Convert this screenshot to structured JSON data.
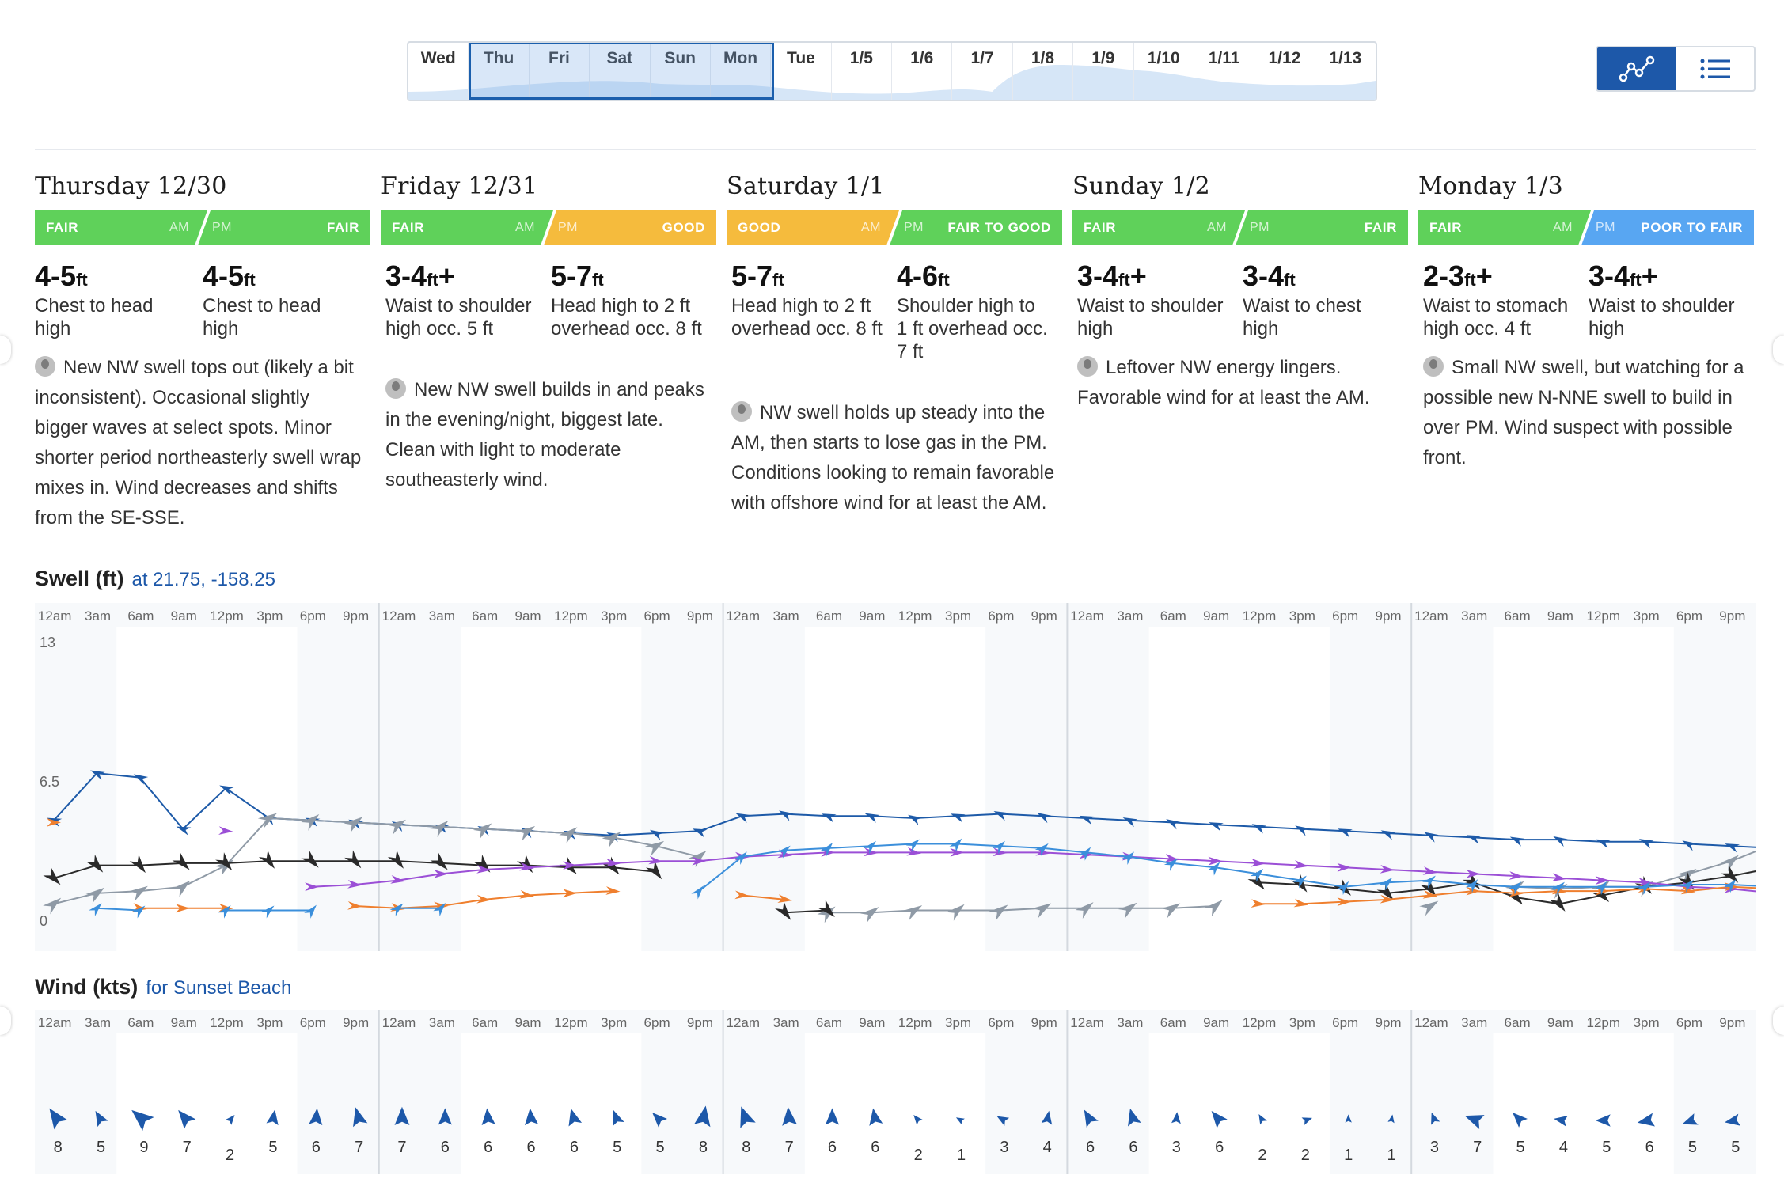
{
  "nav": {
    "days": [
      "Wed",
      "Thu",
      "Fri",
      "Sat",
      "Sun",
      "Mon",
      "Tue",
      "1/5",
      "1/6",
      "1/7",
      "1/8",
      "1/9",
      "1/10",
      "1/11",
      "1/12",
      "1/13"
    ],
    "selected_range": [
      "Thu",
      "Mon"
    ]
  },
  "view_toggle": {
    "active": "graph",
    "graph_icon": "line-graph-icon",
    "list_icon": "list-icon"
  },
  "days": [
    {
      "title": "Thursday 12/30",
      "am": {
        "rating": "FAIR",
        "color": "#5fd15a",
        "tag": "AM"
      },
      "pm": {
        "rating": "FAIR",
        "color": "#5fd15a",
        "tag": "PM"
      },
      "am_size": {
        "range": "4-5",
        "unit": "ft",
        "plus": "",
        "desc": "Chest to head high"
      },
      "pm_size": {
        "range": "4-5",
        "unit": "ft",
        "plus": "",
        "desc": "Chest to head high"
      },
      "note": "New NW swell tops out (likely a bit inconsistent). Occasional slightly bigger waves at select spots. Minor shorter period northeasterly swell wrap mixes in. Wind decreases and shifts from the SE-SSE."
    },
    {
      "title": "Friday 12/31",
      "am": {
        "rating": "FAIR",
        "color": "#5fd15a",
        "tag": "AM"
      },
      "pm": {
        "rating": "GOOD",
        "color": "#f5bb3d",
        "tag": "PM"
      },
      "am_size": {
        "range": "3-4",
        "unit": "ft",
        "plus": "+",
        "desc": "Waist to shoulder high occ. 5 ft"
      },
      "pm_size": {
        "range": "5-7",
        "unit": "ft",
        "plus": "",
        "desc": "Head high to 2 ft overhead occ. 8 ft"
      },
      "note": "New NW swell builds in and peaks in the evening/night, biggest late. Clean with light to moderate southeasterly wind."
    },
    {
      "title": "Saturday 1/1",
      "am": {
        "rating": "GOOD",
        "color": "#f5bb3d",
        "tag": "AM"
      },
      "pm": {
        "rating": "FAIR TO GOOD",
        "color": "#5fd15a",
        "tag": "PM"
      },
      "am_size": {
        "range": "5-7",
        "unit": "ft",
        "plus": "",
        "desc": "Head high to 2 ft overhead occ. 8 ft"
      },
      "pm_size": {
        "range": "4-6",
        "unit": "ft",
        "plus": "",
        "desc": "Shoulder high to 1 ft overhead occ. 7 ft"
      },
      "note": "NW swell holds up steady into the AM, then starts to lose gas in the PM. Conditions looking to remain favorable with offshore wind for at least the AM."
    },
    {
      "title": "Sunday 1/2",
      "am": {
        "rating": "FAIR",
        "color": "#5fd15a",
        "tag": "AM"
      },
      "pm": {
        "rating": "FAIR",
        "color": "#5fd15a",
        "tag": "PM"
      },
      "am_size": {
        "range": "3-4",
        "unit": "ft",
        "plus": "+",
        "desc": "Waist to shoulder high"
      },
      "pm_size": {
        "range": "3-4",
        "unit": "ft",
        "plus": "",
        "desc": "Waist to chest high"
      },
      "note": "Leftover NW energy lingers. Favorable wind for at least the AM."
    },
    {
      "title": "Monday 1/3",
      "am": {
        "rating": "FAIR",
        "color": "#5fd15a",
        "tag": "AM"
      },
      "pm": {
        "rating": "POOR TO FAIR",
        "color": "#58a6f2",
        "tag": "PM"
      },
      "am_size": {
        "range": "2-3",
        "unit": "ft",
        "plus": "+",
        "desc": "Waist to stomach high occ. 4 ft"
      },
      "pm_size": {
        "range": "3-4",
        "unit": "ft",
        "plus": "+",
        "desc": "Waist to shoulder high"
      },
      "note": "Small NW swell, but watching for a possible new N-NNE swell to build in over PM. Wind suspect with possible front."
    }
  ],
  "swell": {
    "title": "Swell (ft)",
    "location": "at 21.75, -158.25",
    "hour_labels": [
      "12am",
      "3am",
      "6am",
      "9am",
      "12pm",
      "3pm",
      "6pm",
      "9pm"
    ],
    "y_ticks": [
      "13",
      "6.5",
      "0"
    ],
    "ylim": [
      0,
      13
    ],
    "series": [
      {
        "color": "#1d5aa8",
        "values": [
          4.7,
          6.9,
          6.7,
          4.3,
          6.2,
          4.8,
          4.7,
          4.6,
          4.5,
          4.4,
          4.3,
          4.2,
          4.1,
          4.0,
          4.1,
          4.2,
          4.9,
          5.0,
          4.9,
          4.9,
          4.8,
          4.9,
          5.0,
          4.9,
          4.8,
          4.7,
          4.6,
          4.5,
          4.4,
          4.3,
          4.2,
          4.1,
          4.0,
          3.9,
          3.8,
          3.8,
          3.7,
          3.7,
          3.6,
          3.5,
          3.4
        ]
      },
      {
        "color": "#8f9aa6",
        "values": [
          0.8,
          1.3,
          1.4,
          1.6,
          2.6,
          4.8,
          4.7,
          4.6,
          4.5,
          4.4,
          4.3,
          4.2,
          4.1,
          3.9,
          3.5,
          3.0,
          null,
          null,
          0.4,
          0.4,
          0.5,
          0.5,
          0.5,
          0.6,
          0.6,
          0.6,
          0.6,
          0.7,
          null,
          null,
          null,
          null,
          0.7,
          null,
          1.6,
          1.5,
          1.6,
          1.6,
          2.2,
          2.8,
          3.6
        ]
      },
      {
        "color": "#2a2a2a",
        "values": [
          2.0,
          2.6,
          2.6,
          2.7,
          2.7,
          2.8,
          2.8,
          2.8,
          2.8,
          2.7,
          2.6,
          2.6,
          2.5,
          2.5,
          2.3,
          null,
          null,
          0.4,
          0.5,
          null,
          null,
          null,
          null,
          null,
          null,
          null,
          null,
          null,
          1.8,
          1.7,
          1.5,
          1.3,
          1.5,
          1.8,
          1.1,
          0.8,
          1.2,
          1.6,
          1.8,
          2.1,
          2.5
        ]
      },
      {
        "color": "#9b4fd6",
        "values": [
          null,
          null,
          null,
          null,
          4.2,
          null,
          1.6,
          1.7,
          1.9,
          2.2,
          2.4,
          2.5,
          2.6,
          2.7,
          2.8,
          2.8,
          3.0,
          3.1,
          3.2,
          3.2,
          3.2,
          3.2,
          3.2,
          3.2,
          3.1,
          3.0,
          2.9,
          2.8,
          2.7,
          2.6,
          2.5,
          2.4,
          2.3,
          2.2,
          2.1,
          2.0,
          1.9,
          1.8,
          1.6,
          1.5,
          1.3
        ]
      },
      {
        "color": "#ef7f2e",
        "values": [
          4.6,
          null,
          0.6,
          0.6,
          0.6,
          null,
          null,
          0.7,
          0.6,
          0.7,
          1.0,
          1.2,
          1.3,
          1.4,
          null,
          null,
          1.2,
          1.0,
          null,
          null,
          null,
          null,
          null,
          null,
          null,
          null,
          null,
          null,
          0.8,
          0.8,
          0.9,
          1.0,
          1.2,
          1.4,
          1.3,
          1.4,
          1.4,
          1.5,
          1.4,
          1.6,
          1.5
        ]
      },
      {
        "color": "#3b8fdb",
        "values": [
          null,
          0.6,
          0.5,
          null,
          0.5,
          0.5,
          0.5,
          null,
          0.6,
          0.6,
          null,
          null,
          null,
          null,
          null,
          1.4,
          3.0,
          3.3,
          3.4,
          3.5,
          3.6,
          3.6,
          3.5,
          3.4,
          3.2,
          3.0,
          2.7,
          2.5,
          2.2,
          1.9,
          1.6,
          1.8,
          1.9,
          1.7,
          1.6,
          1.6,
          1.6,
          1.6,
          1.7,
          1.7,
          1.6
        ]
      }
    ]
  },
  "wind": {
    "title": "Wind (kts)",
    "location": "for Sunset Beach",
    "hour_labels": [
      "12am",
      "3am",
      "6am",
      "9am",
      "12pm",
      "3pm",
      "6pm",
      "9pm"
    ],
    "speeds": [
      8,
      5,
      9,
      7,
      2,
      5,
      6,
      7,
      7,
      6,
      6,
      6,
      6,
      5,
      5,
      8,
      8,
      7,
      6,
      6,
      2,
      1,
      3,
      4,
      6,
      6,
      3,
      6,
      2,
      2,
      1,
      1,
      3,
      7,
      5,
      4,
      5,
      6,
      5,
      5
    ],
    "directions": [
      -35,
      -30,
      -50,
      -40,
      40,
      10,
      5,
      -15,
      0,
      0,
      -5,
      -5,
      -15,
      -20,
      -45,
      10,
      -20,
      -5,
      0,
      -10,
      -40,
      -60,
      -60,
      10,
      -30,
      -15,
      5,
      -40,
      -30,
      70,
      0,
      10,
      -20,
      -70,
      -45,
      -80,
      -90,
      -100,
      -110,
      -100
    ],
    "color": "#1d58a9"
  }
}
